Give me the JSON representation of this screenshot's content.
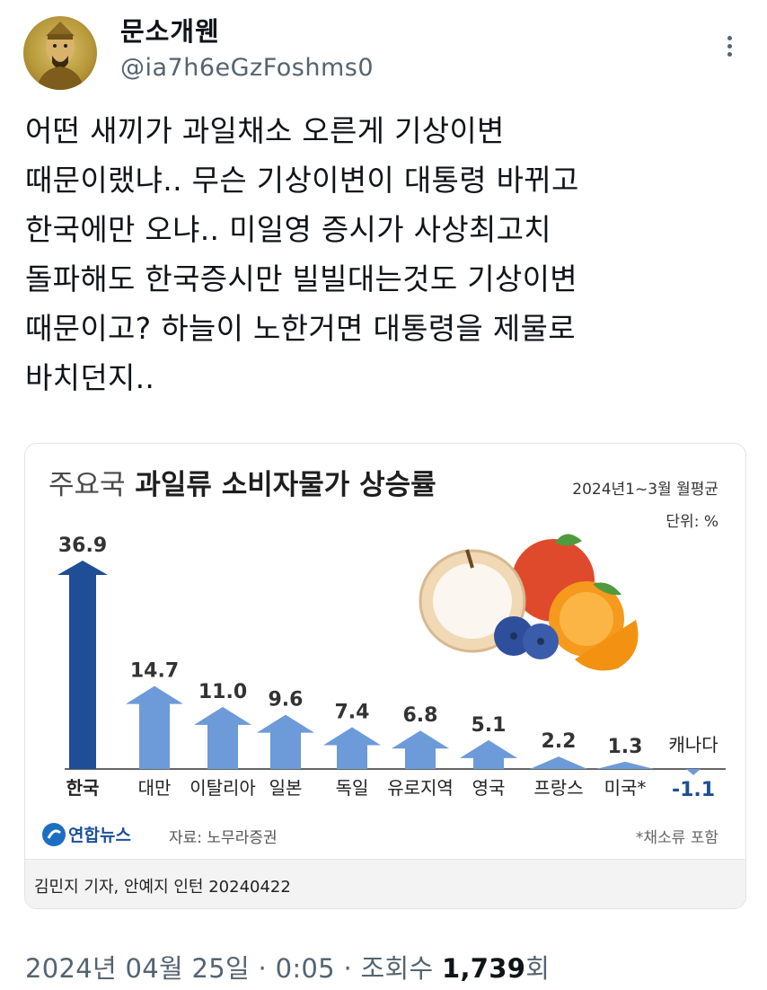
{
  "tweet": {
    "display_name": "문소개웬",
    "handle": "@ia7h6eGzFoshms0",
    "text": "어떤 새끼가 과일채소 오른게 기상이변\n때문이랬냐.. 무슨 기상이변이 대통령 바뀌고\n한국에만 오냐.. 미일영 증시가 사상최고치\n돌파해도 한국증시만 빌빌대는것도 기상이변\n때문이고? 하늘이 노한거면 대통령을 제물로\n바치던지..",
    "date": "2024년 04월 25일",
    "sep1": "·",
    "time": "0:05",
    "sep2": "·",
    "views_label": "조회수",
    "views_count": "1,739",
    "views_suffix": "회"
  },
  "icons": {
    "avatar": "avatar-image",
    "more": "more-vertical-icon"
  },
  "card": {
    "title_prefix": "주요국",
    "title_main": " 과일류 소비자물가 상승률",
    "period": "2024년1~3월 월평균",
    "unit": "단위: %",
    "logo": "연합뉴스",
    "source": "자료: 노무라증권",
    "note": "*채소류 포함",
    "byline": "김민지 기자, 안예지 인턴  20240422"
  },
  "colors": {
    "accent_dark": "#1f4e96",
    "accent_light": "#6d9ad8",
    "negative_label": "#1f4e96"
  },
  "chart_data": {
    "type": "bar",
    "title": "주요국 과일류 소비자물가 상승률",
    "categories": [
      "한국",
      "대만",
      "이탈리아",
      "일본",
      "독일",
      "유로지역",
      "영국",
      "프랑스",
      "미국*",
      "캐나다"
    ],
    "values": [
      36.9,
      14.7,
      11.0,
      9.6,
      7.4,
      6.8,
      5.1,
      2.2,
      1.3,
      -1.1
    ],
    "value_labels": [
      "36.9",
      "14.7",
      "11.0",
      "9.6",
      "7.4",
      "6.8",
      "5.1",
      "2.2",
      "1.3",
      "-1.1"
    ],
    "xlabel": "",
    "ylabel": "",
    "ylim": [
      -1.1,
      36.9
    ],
    "grid": false
  }
}
